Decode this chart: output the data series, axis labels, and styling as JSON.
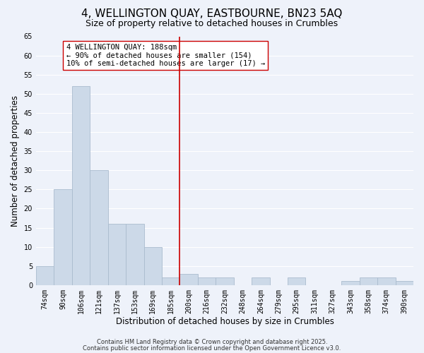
{
  "title": "4, WELLINGTON QUAY, EASTBOURNE, BN23 5AQ",
  "subtitle": "Size of property relative to detached houses in Crumbles",
  "xlabel": "Distribution of detached houses by size in Crumbles",
  "ylabel": "Number of detached properties",
  "bar_color": "#ccd9e8",
  "bar_edge_color": "#aabcce",
  "background_color": "#eef2fa",
  "grid_color": "#ffffff",
  "categories": [
    "74sqm",
    "90sqm",
    "106sqm",
    "121sqm",
    "137sqm",
    "153sqm",
    "169sqm",
    "185sqm",
    "200sqm",
    "216sqm",
    "232sqm",
    "248sqm",
    "264sqm",
    "279sqm",
    "295sqm",
    "311sqm",
    "327sqm",
    "343sqm",
    "358sqm",
    "374sqm",
    "390sqm"
  ],
  "values": [
    5,
    25,
    52,
    30,
    16,
    16,
    10,
    2,
    3,
    2,
    2,
    0,
    2,
    0,
    2,
    0,
    0,
    1,
    2,
    2,
    1
  ],
  "ylim": [
    0,
    65
  ],
  "yticks": [
    0,
    5,
    10,
    15,
    20,
    25,
    30,
    35,
    40,
    45,
    50,
    55,
    60,
    65
  ],
  "vline_x": 7.5,
  "vline_color": "#cc0000",
  "annotation_title": "4 WELLINGTON QUAY: 188sqm",
  "annotation_line1": "← 90% of detached houses are smaller (154)",
  "annotation_line2": "10% of semi-detached houses are larger (17) →",
  "annotation_box_color": "#ffffff",
  "annotation_box_edge": "#cc0000",
  "footer1": "Contains HM Land Registry data © Crown copyright and database right 2025.",
  "footer2": "Contains public sector information licensed under the Open Government Licence v3.0.",
  "title_fontsize": 11,
  "subtitle_fontsize": 9,
  "axis_label_fontsize": 8.5,
  "tick_fontsize": 7,
  "annotation_fontsize": 7.5,
  "footer_fontsize": 6
}
